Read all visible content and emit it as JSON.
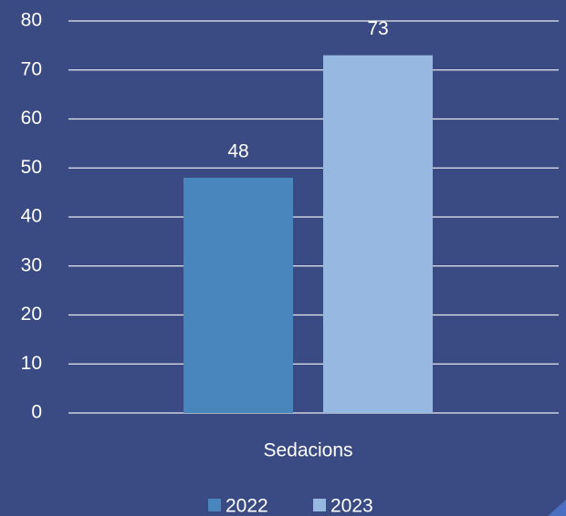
{
  "chart_data": {
    "type": "bar",
    "categories": [
      "Sedacions"
    ],
    "series": [
      {
        "name": "2022",
        "color": "#4a86be",
        "values": [
          48
        ]
      },
      {
        "name": "2023",
        "color": "#97b9e1",
        "values": [
          73
        ]
      }
    ],
    "ylim": [
      0,
      80
    ],
    "yticks": [
      0,
      10,
      20,
      30,
      40,
      50,
      60,
      70,
      80
    ],
    "grid": true,
    "legend": "bottom"
  }
}
